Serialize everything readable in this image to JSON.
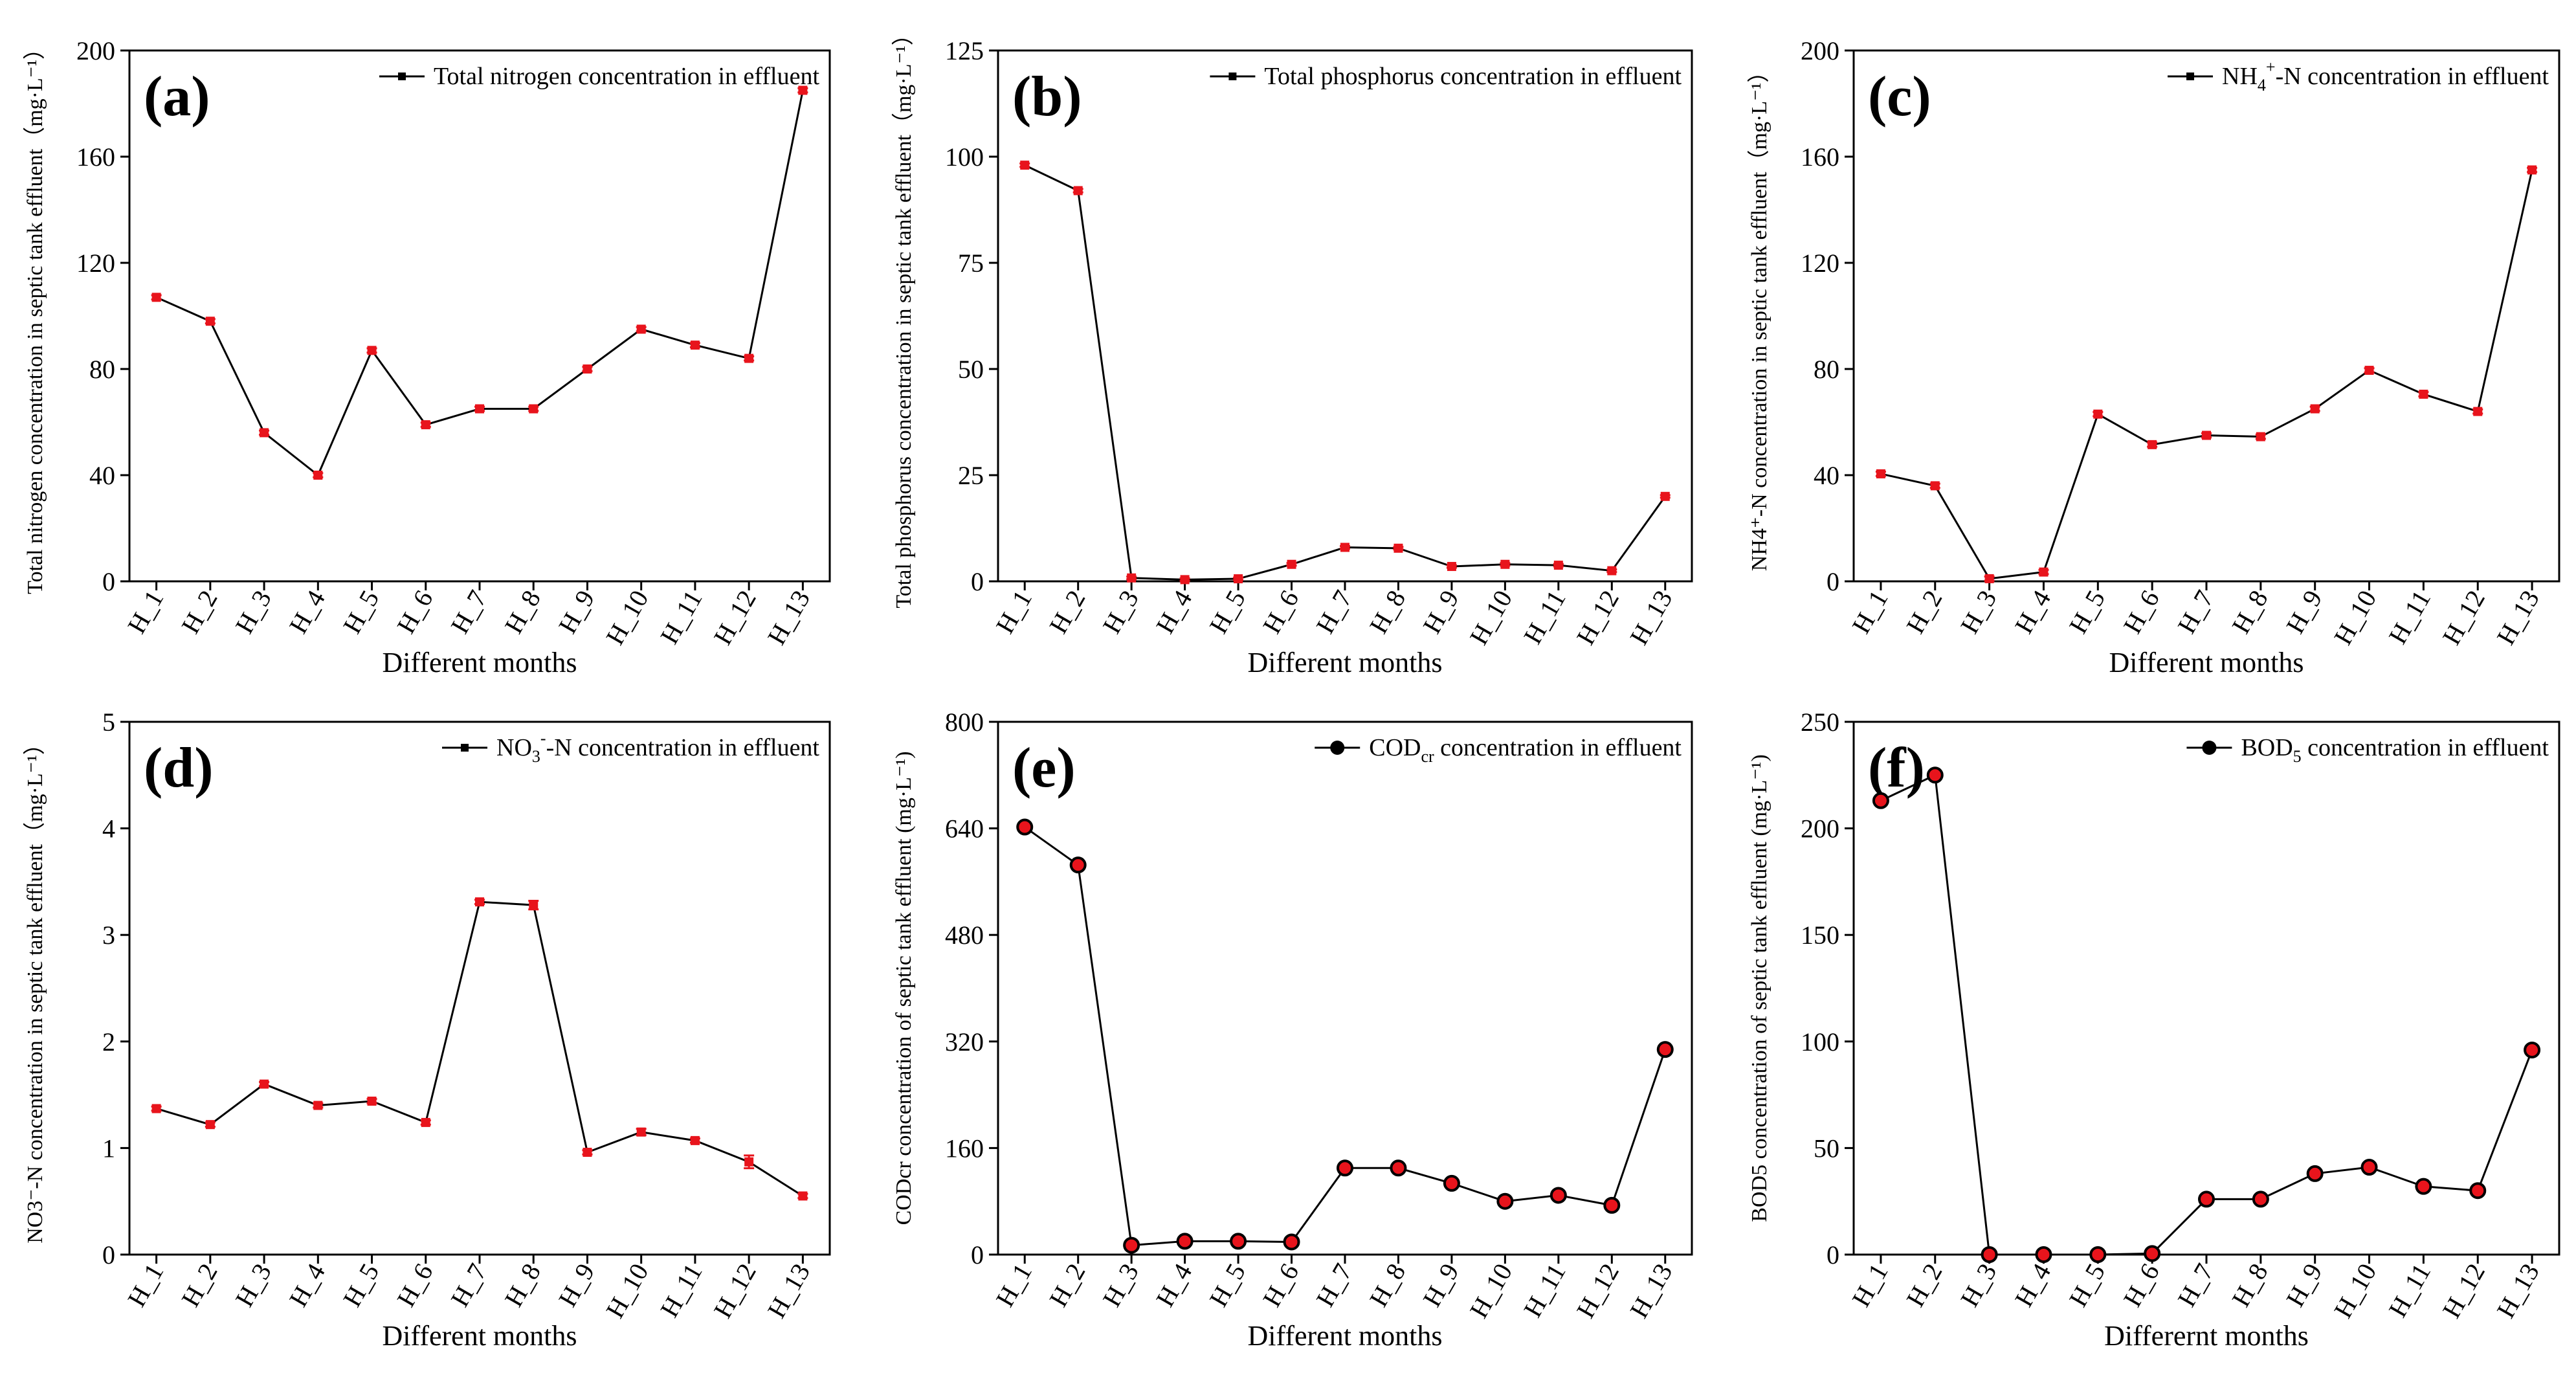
{
  "chart_data": [
    {
      "type": "line",
      "panel_label": "(a)",
      "title": "",
      "legend_label": "Total nitrogen concentration in effluent",
      "legend_sup": "",
      "legend_sub": "",
      "legend_suffix": "",
      "marker": "square",
      "xlabel": "Different months",
      "ylabel": "Total nitrogen concentration in septic tank effluent（mg·L⁻¹）",
      "categories": [
        "H_1",
        "H_2",
        "H_3",
        "H_4",
        "H_5",
        "H_6",
        "H_7",
        "H_8",
        "H_9",
        "H_10",
        "H_11",
        "H_12",
        "H_13"
      ],
      "values": [
        107,
        98,
        56,
        40,
        87,
        59,
        65,
        65,
        80,
        95,
        89,
        84,
        185
      ],
      "errors": [
        0.8,
        0.8,
        0.8,
        0.8,
        0.8,
        0.8,
        0.8,
        0.8,
        0.8,
        0.8,
        0.8,
        0.8,
        0.8
      ],
      "ylim": [
        0,
        200
      ],
      "yticks": [
        0,
        40,
        80,
        120,
        160,
        200
      ]
    },
    {
      "type": "line",
      "panel_label": "(b)",
      "title": "",
      "legend_label": "Total phosphorus concentration in effluent",
      "legend_sup": "",
      "legend_sub": "",
      "legend_suffix": "",
      "marker": "square",
      "xlabel": "Different months",
      "ylabel": "Total phosphorus concentration in septic tank effluent（mg·L⁻¹）",
      "categories": [
        "H_1",
        "H_2",
        "H_3",
        "H_4",
        "H_5",
        "H_6",
        "H_7",
        "H_8",
        "H_9",
        "H_10",
        "H_11",
        "H_12",
        "H_13"
      ],
      "values": [
        98,
        92,
        0.8,
        0.4,
        0.6,
        4,
        8,
        7.8,
        3.5,
        4,
        3.8,
        2.5,
        20
      ],
      "errors": [
        0.4,
        0.4,
        0.3,
        0.3,
        0.3,
        0.3,
        0.3,
        0.3,
        0.3,
        0.3,
        0.3,
        0.3,
        0.3
      ],
      "ylim": [
        0,
        125
      ],
      "yticks": [
        0,
        25,
        50,
        75,
        100,
        125
      ]
    },
    {
      "type": "line",
      "panel_label": "(c)",
      "title": "",
      "legend_label": "NH",
      "legend_sup": "+",
      "legend_sub": "4",
      "legend_suffix": "-N concentration in effluent",
      "marker": "square",
      "xlabel": "Different months",
      "ylabel": "NH4⁺-N concentration in septic tank effluent（mg·L⁻¹）",
      "categories": [
        "H_1",
        "H_2",
        "H_3",
        "H_4",
        "H_5",
        "H_6",
        "H_7",
        "H_8",
        "H_9",
        "H_10",
        "H_11",
        "H_12",
        "H_13"
      ],
      "values": [
        40.5,
        36,
        1,
        3.5,
        63,
        51.5,
        55,
        54.5,
        65,
        79.5,
        70.5,
        64,
        155
      ],
      "errors": [
        0.8,
        0.8,
        0.8,
        0.8,
        0.8,
        0.8,
        0.8,
        0.8,
        0.8,
        0.8,
        0.8,
        0.8,
        0.8
      ],
      "ylim": [
        0,
        200
      ],
      "yticks": [
        0,
        40,
        80,
        120,
        160,
        200
      ]
    },
    {
      "type": "line",
      "panel_label": "(d)",
      "title": "",
      "legend_label": "NO",
      "legend_sup": "-",
      "legend_sub": "3",
      "legend_suffix": "-N concentration in effluent",
      "marker": "square",
      "xlabel": "Different months",
      "ylabel": "NO3⁻-N concentration in septic tank effluent（mg·L⁻¹）",
      "categories": [
        "H_1",
        "H_2",
        "H_3",
        "H_4",
        "H_5",
        "H_6",
        "H_7",
        "H_8",
        "H_9",
        "H_10",
        "H_11",
        "H_12",
        "H_13"
      ],
      "values": [
        1.37,
        1.22,
        1.6,
        1.4,
        1.44,
        1.24,
        3.31,
        3.28,
        0.96,
        1.15,
        1.07,
        0.87,
        0.55
      ],
      "errors": [
        0.02,
        0.02,
        0.02,
        0.02,
        0.02,
        0.02,
        0.02,
        0.04,
        0.02,
        0.03,
        0.02,
        0.06,
        0.02
      ],
      "ylim": [
        0,
        5
      ],
      "yticks": [
        0,
        1,
        2,
        3,
        4,
        5
      ]
    },
    {
      "type": "line",
      "panel_label": "(e)",
      "title": "",
      "legend_label": "COD",
      "legend_sup": "",
      "legend_sub": "cr",
      "legend_suffix": " concentration in effluent",
      "marker": "circle",
      "xlabel": "Different months",
      "ylabel": "CODcr concentration of septic tank effluent (mg·L⁻¹)",
      "categories": [
        "H_1",
        "H_2",
        "H_3",
        "H_4",
        "H_5",
        "H_6",
        "H_7",
        "H_8",
        "H_9",
        "H_10",
        "H_11",
        "H_12",
        "H_13"
      ],
      "values": [
        642,
        585,
        14,
        20,
        20,
        19,
        130,
        130,
        107,
        80,
        89,
        74,
        308
      ],
      "errors": [
        2,
        2,
        2,
        2,
        2,
        2,
        2,
        2,
        2,
        2,
        2,
        2,
        2
      ],
      "ylim": [
        0,
        800
      ],
      "yticks": [
        0,
        160,
        320,
        480,
        640,
        800
      ]
    },
    {
      "type": "line",
      "panel_label": "(f)",
      "title": "",
      "legend_label": "BOD",
      "legend_sup": "",
      "legend_sub": "5",
      "legend_suffix": " concentration in effluent",
      "marker": "circle",
      "xlabel": "Differernt months",
      "ylabel": "BOD5 concentration of septic tank effluent (mg·L⁻¹)",
      "categories": [
        "H_1",
        "H_2",
        "H_3",
        "H_4",
        "H_5",
        "H_6",
        "H_7",
        "H_8",
        "H_9",
        "H_10",
        "H_11",
        "H_12",
        "H_13"
      ],
      "values": [
        213,
        225,
        0,
        0,
        0,
        0.5,
        26,
        26,
        38,
        41,
        32,
        30,
        96
      ],
      "errors": [
        1.5,
        2.5,
        0.5,
        0.5,
        0.5,
        0.5,
        0.8,
        0.8,
        1,
        1.2,
        1,
        1,
        1
      ],
      "ylim": [
        0,
        250
      ],
      "yticks": [
        0,
        50,
        100,
        150,
        200,
        250
      ]
    }
  ],
  "colors": {
    "line": "#000000",
    "marker_fill": "#e8141c",
    "error_bar": "#e8141c",
    "axis": "#000000",
    "background": "#ffffff"
  }
}
